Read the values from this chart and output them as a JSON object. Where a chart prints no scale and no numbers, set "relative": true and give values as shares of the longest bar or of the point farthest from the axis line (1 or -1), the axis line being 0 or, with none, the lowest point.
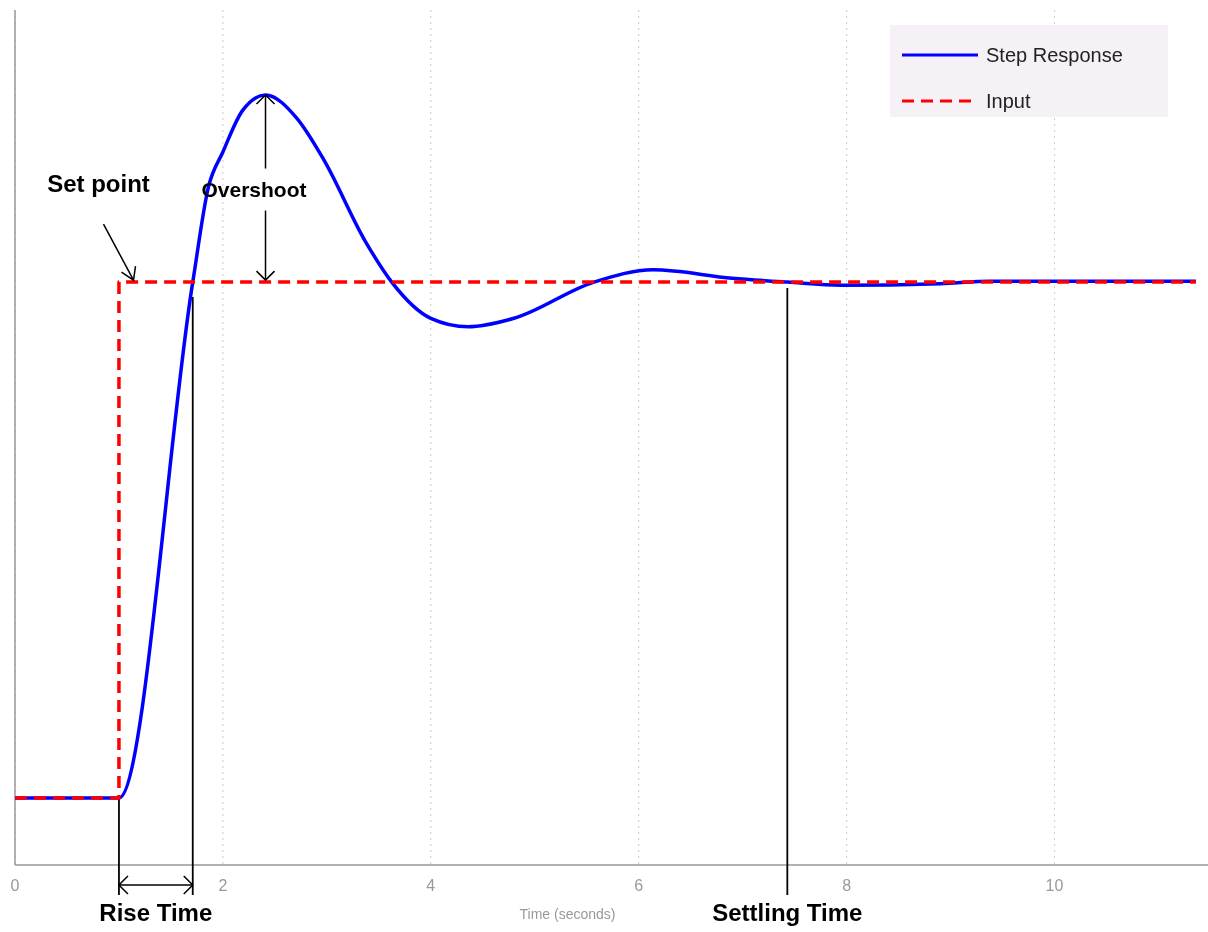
{
  "chart_data": {
    "type": "line",
    "relative": true,
    "xlabel": "Time (seconds)",
    "xlim": [
      0,
      11.4
    ],
    "xticks": [
      0,
      2,
      4,
      6,
      8,
      10
    ],
    "grid": "x",
    "legend": "top right",
    "series": [
      {
        "name": "Step Response",
        "color": "#0000ff",
        "line_style": "solid",
        "x": [
          0,
          1.0,
          1.71,
          1.86,
          2.0,
          2.19,
          2.41,
          2.71,
          2.97,
          3.37,
          3.63,
          4.0,
          4.36,
          4.8,
          5.57,
          6.14,
          6.9,
          7.43,
          7.95,
          8.9,
          9.38,
          11.36
        ],
        "values": [
          0.087,
          0.087,
          0.757,
          0.88,
          0.926,
          0.98,
          1,
          0.97,
          0.916,
          0.81,
          0.756,
          0.71,
          0.699,
          0.71,
          0.757,
          0.773,
          0.762,
          0.757,
          0.753,
          0.755,
          0.758,
          0.758
        ]
      },
      {
        "name": "Input",
        "color": "#ff0000",
        "line_style": "dashed",
        "x": [
          0,
          1.0,
          1.0,
          11.36
        ],
        "values": [
          0.087,
          0.087,
          0.757,
          0.757
        ]
      }
    ],
    "ref_lines": [
      {
        "axis": "x",
        "value": 1.0,
        "color": "#000000"
      },
      {
        "axis": "x",
        "value": 1.71,
        "color": "#000000"
      },
      {
        "axis": "x",
        "value": 7.43,
        "label": "Settling Time",
        "color": "#000000"
      }
    ],
    "annotations": [
      {
        "text": "Set point",
        "x": 1.14,
        "y": 0.757
      },
      {
        "text": "Overshoot",
        "x": 2.41,
        "y": 1
      },
      "Rise Time"
    ]
  }
}
